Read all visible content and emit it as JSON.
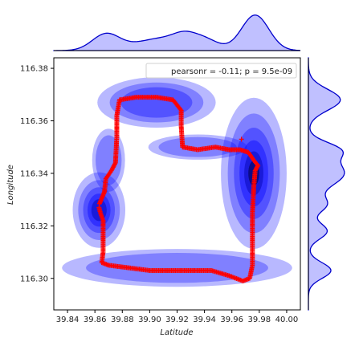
{
  "chart_data": {
    "type": "scatter",
    "subtype": "jointplot-kde",
    "xlabel": "Latitude",
    "ylabel": "Longitude",
    "xlim": [
      39.83,
      40.01
    ],
    "ylim": [
      116.288,
      116.384
    ],
    "x_ticks": [
      "39.84",
      "39.86",
      "39.88",
      "39.90",
      "39.92",
      "39.94",
      "39.96",
      "39.98",
      "40.00"
    ],
    "y_ticks": [
      "116.30",
      "116.32",
      "116.34",
      "116.36",
      "116.38"
    ],
    "grid": false,
    "legend": {
      "text": "pearsonr = -0.11; p = 9.5e-09",
      "placement": "top-right"
    },
    "colors": {
      "points": "#ff0000",
      "kde": "#0000ff",
      "marginal_line": "#0000cc",
      "marginal_fill": "#c0c0ff"
    },
    "route_points": [
      [
        39.863,
        116.327
      ],
      [
        39.864,
        116.325
      ],
      [
        39.866,
        116.322
      ],
      [
        39.866,
        116.316
      ],
      [
        39.866,
        116.31
      ],
      [
        39.865,
        116.306
      ],
      [
        39.87,
        116.305
      ],
      [
        39.885,
        116.304
      ],
      [
        39.9,
        116.303
      ],
      [
        39.915,
        116.303
      ],
      [
        39.93,
        116.303
      ],
      [
        39.945,
        116.303
      ],
      [
        39.958,
        116.301
      ],
      [
        39.968,
        116.299
      ],
      [
        39.973,
        116.3
      ],
      [
        39.975,
        116.305
      ],
      [
        39.975,
        116.315
      ],
      [
        39.975,
        116.325
      ],
      [
        39.976,
        116.335
      ],
      [
        39.977,
        116.341
      ],
      [
        39.979,
        116.343
      ],
      [
        39.976,
        116.345
      ],
      [
        39.972,
        116.348
      ],
      [
        39.966,
        116.349
      ],
      [
        39.958,
        116.349
      ],
      [
        39.948,
        116.35
      ],
      [
        39.935,
        116.349
      ],
      [
        39.924,
        116.35
      ],
      [
        39.923,
        116.358
      ],
      [
        39.923,
        116.364
      ],
      [
        39.917,
        116.368
      ],
      [
        39.905,
        116.369
      ],
      [
        39.89,
        116.369
      ],
      [
        39.878,
        116.368
      ],
      [
        39.876,
        116.362
      ],
      [
        39.876,
        116.354
      ],
      [
        39.875,
        116.344
      ],
      [
        39.872,
        116.341
      ],
      [
        39.868,
        116.338
      ],
      [
        39.867,
        116.333
      ],
      [
        39.863,
        116.328
      ]
    ],
    "kde_clusters": [
      {
        "x": 39.976,
        "y": 116.34,
        "sx": 0.01,
        "sy": 0.012,
        "weight": 1.0
      },
      {
        "x": 39.863,
        "y": 116.326,
        "sx": 0.008,
        "sy": 0.006,
        "weight": 0.75
      },
      {
        "x": 39.905,
        "y": 116.367,
        "sx": 0.018,
        "sy": 0.004,
        "weight": 0.55
      },
      {
        "x": 39.87,
        "y": 116.345,
        "sx": 0.005,
        "sy": 0.005,
        "weight": 0.35
      },
      {
        "x": 39.92,
        "y": 116.304,
        "sx": 0.035,
        "sy": 0.003,
        "weight": 0.35
      },
      {
        "x": 39.935,
        "y": 116.35,
        "sx": 0.015,
        "sy": 0.002,
        "weight": 0.25
      }
    ]
  }
}
